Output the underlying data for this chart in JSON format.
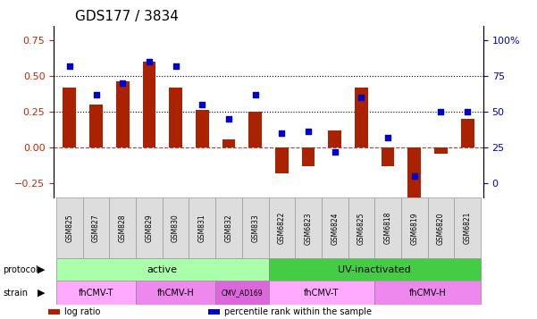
{
  "title": "GDS177 / 3834",
  "samples": [
    "GSM825",
    "GSM827",
    "GSM828",
    "GSM829",
    "GSM830",
    "GSM831",
    "GSM832",
    "GSM833",
    "GSM6822",
    "GSM6823",
    "GSM6824",
    "GSM6825",
    "GSM6818",
    "GSM6819",
    "GSM6820",
    "GSM6821"
  ],
  "log_ratio": [
    0.42,
    0.3,
    0.46,
    0.6,
    0.42,
    0.26,
    0.055,
    0.25,
    -0.18,
    -0.13,
    0.12,
    0.42,
    -0.13,
    -0.38,
    -0.04,
    0.2
  ],
  "pct_rank": [
    82,
    62,
    70,
    85,
    82,
    55,
    45,
    62,
    35,
    36,
    22,
    60,
    32,
    5,
    50,
    50
  ],
  "ylim": [
    -0.35,
    0.85
  ],
  "yticks_left": [
    -0.25,
    0.0,
    0.25,
    0.5,
    0.75
  ],
  "yticks_right": [
    0,
    25,
    50,
    75,
    100
  ],
  "hlines": [
    0.5,
    0.25
  ],
  "bar_color": "#aa2200",
  "dot_color": "#0000cc",
  "zero_line_color": "#cc3333",
  "protocol_active_color": "#aaffaa",
  "protocol_uv_color": "#55cc55",
  "strain_light_color": "#ffaaff",
  "strain_dark_color": "#dd66dd",
  "strain_cmv_color": "#ee88ee",
  "tick_label_color_left": "#cc2200",
  "tick_label_color_right": "#0000cc",
  "protocol_groups": [
    {
      "label": "active",
      "start": 0,
      "end": 8,
      "color": "#aaffaa"
    },
    {
      "label": "UV-inactivated",
      "start": 8,
      "end": 16,
      "color": "#44cc44"
    }
  ],
  "strain_groups": [
    {
      "label": "fhCMV-T",
      "start": 0,
      "end": 3,
      "color": "#ffaaff"
    },
    {
      "label": "fhCMV-H",
      "start": 3,
      "end": 6,
      "color": "#ee88ee"
    },
    {
      "label": "CMV_AD169",
      "start": 6,
      "end": 8,
      "color": "#dd66dd"
    },
    {
      "label": "fhCMV-T",
      "start": 8,
      "end": 12,
      "color": "#ffaaff"
    },
    {
      "label": "fhCMV-H",
      "start": 12,
      "end": 16,
      "color": "#ee88ee"
    }
  ],
  "legend_items": [
    {
      "label": "log ratio",
      "color": "#aa2200"
    },
    {
      "label": "percentile rank within the sample",
      "color": "#0000cc"
    }
  ]
}
